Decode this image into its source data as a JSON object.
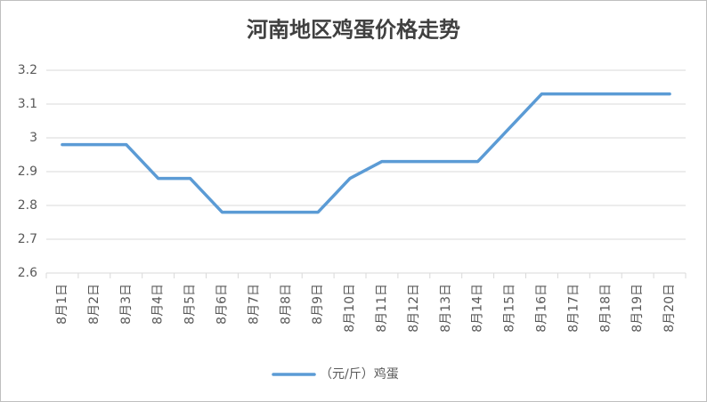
{
  "chart_data": {
    "type": "line",
    "title": "河南地区鸡蛋价格走势",
    "categories": [
      "8月1日",
      "8月2日",
      "8月3日",
      "8月4日",
      "8月5日",
      "8月6日",
      "8月7日",
      "8月8日",
      "8月9日",
      "8月10日",
      "8月11日",
      "8月12日",
      "8月13日",
      "8月14日",
      "8月15日",
      "8月16日",
      "8月17日",
      "8月18日",
      "8月19日",
      "8月20日"
    ],
    "series": [
      {
        "name": "（元/斤）鸡蛋",
        "color": "#5b9bd5",
        "values": [
          2.98,
          2.98,
          2.98,
          2.88,
          2.88,
          2.78,
          2.78,
          2.78,
          2.78,
          2.88,
          2.93,
          2.93,
          2.93,
          2.93,
          3.03,
          3.13,
          3.13,
          3.13,
          3.13,
          3.13
        ]
      }
    ],
    "ylim": [
      2.6,
      3.2
    ],
    "yticks": [
      2.6,
      2.7,
      2.8,
      2.9,
      3,
      3.1,
      3.2
    ],
    "grid": true,
    "legend": "bottom"
  }
}
